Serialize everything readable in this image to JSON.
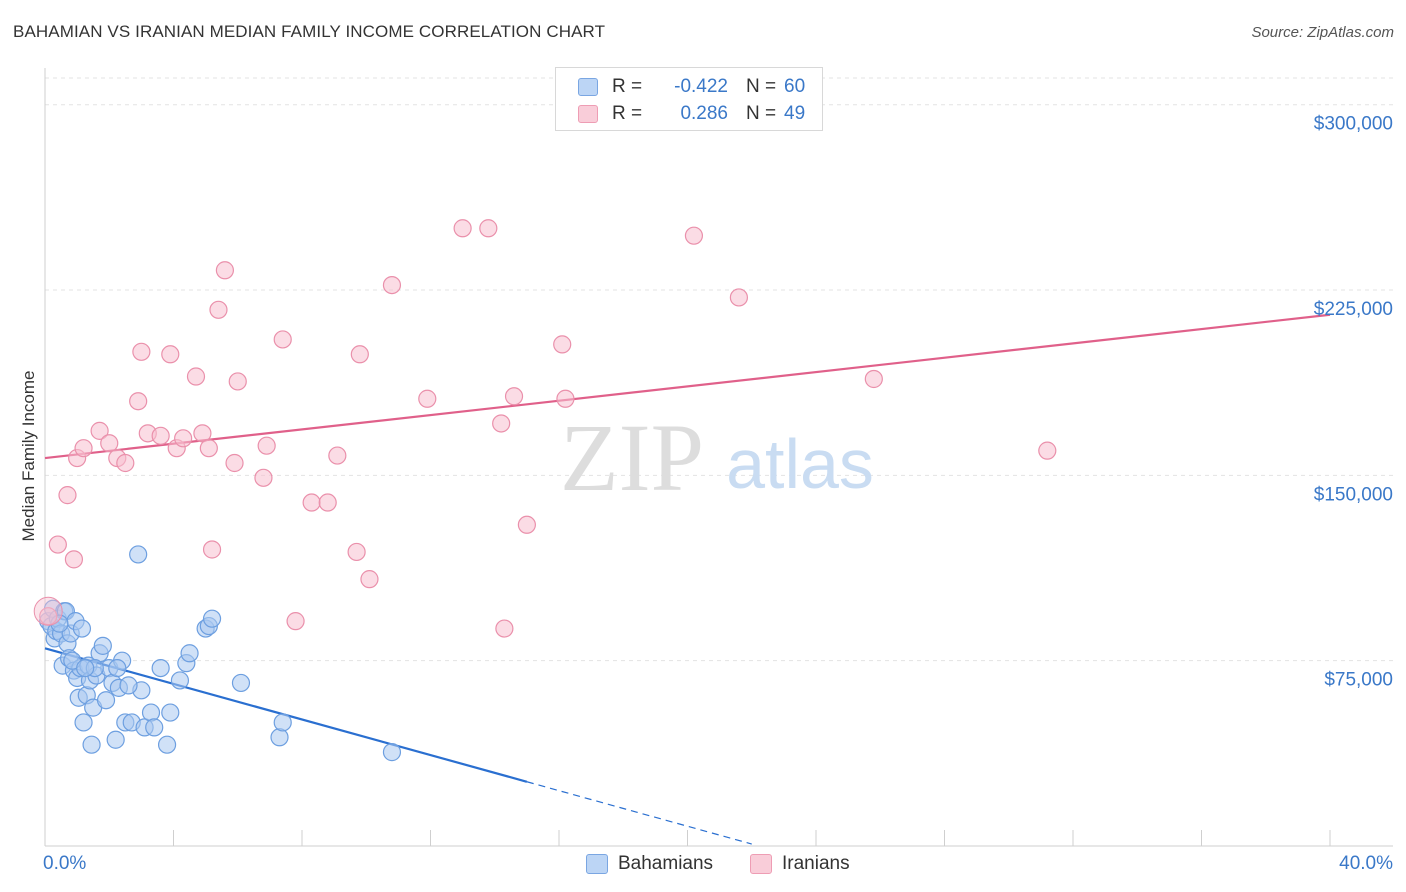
{
  "title": "BAHAMIAN VS IRANIAN MEDIAN FAMILY INCOME CORRELATION CHART",
  "source": "Source: ZipAtlas.com",
  "watermark": {
    "zip": "ZIP",
    "atlas": "atlas"
  },
  "legend": {
    "r_label": "R =",
    "n_label": "N =",
    "rows": [
      {
        "name": "Bahamians",
        "r": "-0.422",
        "n": "60"
      },
      {
        "name": "Iranians",
        "r": "0.286",
        "n": "49"
      }
    ]
  },
  "colors": {
    "blue_fill": "#a9c8f0",
    "blue_stroke": "#6d9fe0",
    "blue_line": "#2a6fd0",
    "pink_fill": "#f7c0d0",
    "pink_stroke": "#ea90ab",
    "pink_line": "#e0608a",
    "tick_label": "#3a78c8",
    "grid": "#e3e3e3"
  },
  "chart_data": {
    "type": "scatter",
    "title": "BAHAMIAN VS IRANIAN MEDIAN FAMILY INCOME CORRELATION CHART",
    "xlabel": "",
    "ylabel": "Median Family Income",
    "xlim": [
      0,
      40
    ],
    "ylim": [
      0,
      310000
    ],
    "x_tick_labels": [
      "0.0%",
      "40.0%"
    ],
    "y_ticks": [
      75000,
      150000,
      225000,
      300000
    ],
    "y_tick_labels": [
      "$75,000",
      "$150,000",
      "$225,000",
      "$300,000"
    ],
    "series": [
      {
        "name": "Bahamians",
        "color": "blue",
        "r": -0.422,
        "n": 60,
        "trend": {
          "x0": 0,
          "y0": 80000,
          "x1": 15,
          "y1": 26000,
          "dash_to_x": 22
        },
        "points": [
          [
            0.1,
            91000
          ],
          [
            0.2,
            89000
          ],
          [
            0.25,
            96000
          ],
          [
            0.3,
            84000
          ],
          [
            0.35,
            87000
          ],
          [
            0.4,
            92000
          ],
          [
            0.5,
            86000
          ],
          [
            0.55,
            73000
          ],
          [
            0.6,
            95000
          ],
          [
            0.65,
            95000
          ],
          [
            0.7,
            82000
          ],
          [
            0.75,
            76000
          ],
          [
            0.8,
            86000
          ],
          [
            0.9,
            71000
          ],
          [
            0.95,
            91000
          ],
          [
            1.0,
            68000
          ],
          [
            1.05,
            60000
          ],
          [
            1.1,
            72000
          ],
          [
            1.15,
            88000
          ],
          [
            1.2,
            50000
          ],
          [
            1.3,
            61000
          ],
          [
            1.35,
            73000
          ],
          [
            1.4,
            67000
          ],
          [
            1.45,
            41000
          ],
          [
            1.5,
            56000
          ],
          [
            1.6,
            69000
          ],
          [
            1.7,
            78000
          ],
          [
            1.8,
            81000
          ],
          [
            1.9,
            59000
          ],
          [
            2.0,
            72000
          ],
          [
            2.1,
            66000
          ],
          [
            2.2,
            43000
          ],
          [
            2.3,
            64000
          ],
          [
            2.4,
            75000
          ],
          [
            2.5,
            50000
          ],
          [
            2.7,
            50000
          ],
          [
            2.9,
            118000
          ],
          [
            3.0,
            63000
          ],
          [
            3.1,
            48000
          ],
          [
            3.3,
            54000
          ],
          [
            3.6,
            72000
          ],
          [
            3.8,
            41000
          ],
          [
            3.9,
            54000
          ],
          [
            4.2,
            67000
          ],
          [
            4.4,
            74000
          ],
          [
            4.5,
            78000
          ],
          [
            5.0,
            88000
          ],
          [
            5.1,
            89000
          ],
          [
            5.2,
            92000
          ],
          [
            6.1,
            66000
          ],
          [
            7.3,
            44000
          ],
          [
            7.4,
            50000
          ],
          [
            10.8,
            38000
          ],
          [
            2.25,
            72000
          ],
          [
            1.55,
            72000
          ],
          [
            0.45,
            90000
          ],
          [
            0.85,
            75000
          ],
          [
            2.6,
            65000
          ],
          [
            1.25,
            72000
          ],
          [
            3.4,
            48000
          ]
        ]
      },
      {
        "name": "Iranians",
        "color": "pink",
        "r": 0.286,
        "n": 49,
        "trend": {
          "x0": 0,
          "y0": 157000,
          "x1": 40,
          "y1": 215000
        },
        "points": [
          [
            0.1,
            93000
          ],
          [
            0.4,
            122000
          ],
          [
            0.7,
            142000
          ],
          [
            0.9,
            116000
          ],
          [
            1.0,
            157000
          ],
          [
            1.2,
            161000
          ],
          [
            1.7,
            168000
          ],
          [
            2.0,
            163000
          ],
          [
            2.25,
            157000
          ],
          [
            2.5,
            155000
          ],
          [
            2.9,
            180000
          ],
          [
            3.0,
            200000
          ],
          [
            3.2,
            167000
          ],
          [
            3.6,
            166000
          ],
          [
            3.9,
            199000
          ],
          [
            4.1,
            161000
          ],
          [
            4.3,
            165000
          ],
          [
            4.7,
            190000
          ],
          [
            4.9,
            167000
          ],
          [
            5.1,
            161000
          ],
          [
            5.2,
            120000
          ],
          [
            5.4,
            217000
          ],
          [
            5.6,
            233000
          ],
          [
            5.9,
            155000
          ],
          [
            6.0,
            188000
          ],
          [
            6.8,
            149000
          ],
          [
            6.9,
            162000
          ],
          [
            7.4,
            205000
          ],
          [
            7.8,
            91000
          ],
          [
            8.3,
            139000
          ],
          [
            8.8,
            139000
          ],
          [
            9.1,
            158000
          ],
          [
            9.7,
            119000
          ],
          [
            9.8,
            199000
          ],
          [
            10.1,
            108000
          ],
          [
            10.8,
            227000
          ],
          [
            11.9,
            181000
          ],
          [
            13.0,
            250000
          ],
          [
            13.8,
            250000
          ],
          [
            14.2,
            171000
          ],
          [
            14.3,
            88000
          ],
          [
            14.6,
            182000
          ],
          [
            15.0,
            130000
          ],
          [
            16.1,
            203000
          ],
          [
            16.2,
            181000
          ],
          [
            20.2,
            247000
          ],
          [
            21.6,
            222000
          ],
          [
            25.8,
            189000
          ],
          [
            31.2,
            160000
          ]
        ]
      }
    ]
  }
}
